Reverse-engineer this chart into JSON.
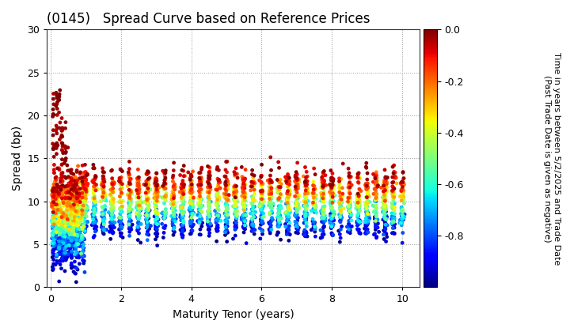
{
  "title": "(0145)   Spread Curve based on Reference Prices",
  "xlabel": "Maturity Tenor (years)",
  "ylabel": "Spread (bp)",
  "colorbar_label": "Time in years between 5/2/2025 and Trade Date\n(Past Trade Date is given as negative)",
  "xlim": [
    -0.1,
    10.5
  ],
  "ylim": [
    0,
    30
  ],
  "xticks": [
    0,
    2,
    4,
    6,
    8,
    10
  ],
  "yticks": [
    0,
    5,
    10,
    15,
    20,
    25,
    30
  ],
  "cmap": "jet",
  "clim": [
    -1.0,
    0.0
  ],
  "cticks": [
    0.0,
    -0.2,
    -0.4,
    -0.6,
    -0.8
  ],
  "background_color": "#ffffff",
  "grid_color": "#999999",
  "seed": 12345,
  "point_size": 12,
  "alpha": 1.0,
  "short_tenor_clusters": [
    0.08,
    0.17,
    0.25,
    0.33,
    0.42,
    0.5,
    0.58,
    0.67,
    0.75,
    0.83,
    0.92
  ],
  "long_tenor_clusters": [
    1.0,
    1.25,
    1.5,
    1.75,
    2.0,
    2.25,
    2.5,
    2.75,
    3.0,
    3.25,
    3.5,
    3.75,
    4.0,
    4.25,
    4.5,
    4.75,
    5.0,
    5.25,
    5.5,
    5.75,
    6.0,
    6.25,
    6.5,
    6.75,
    7.0,
    7.25,
    7.5,
    7.75,
    8.0,
    8.25,
    8.5,
    8.75,
    9.0,
    9.25,
    9.5,
    9.75,
    10.0
  ]
}
